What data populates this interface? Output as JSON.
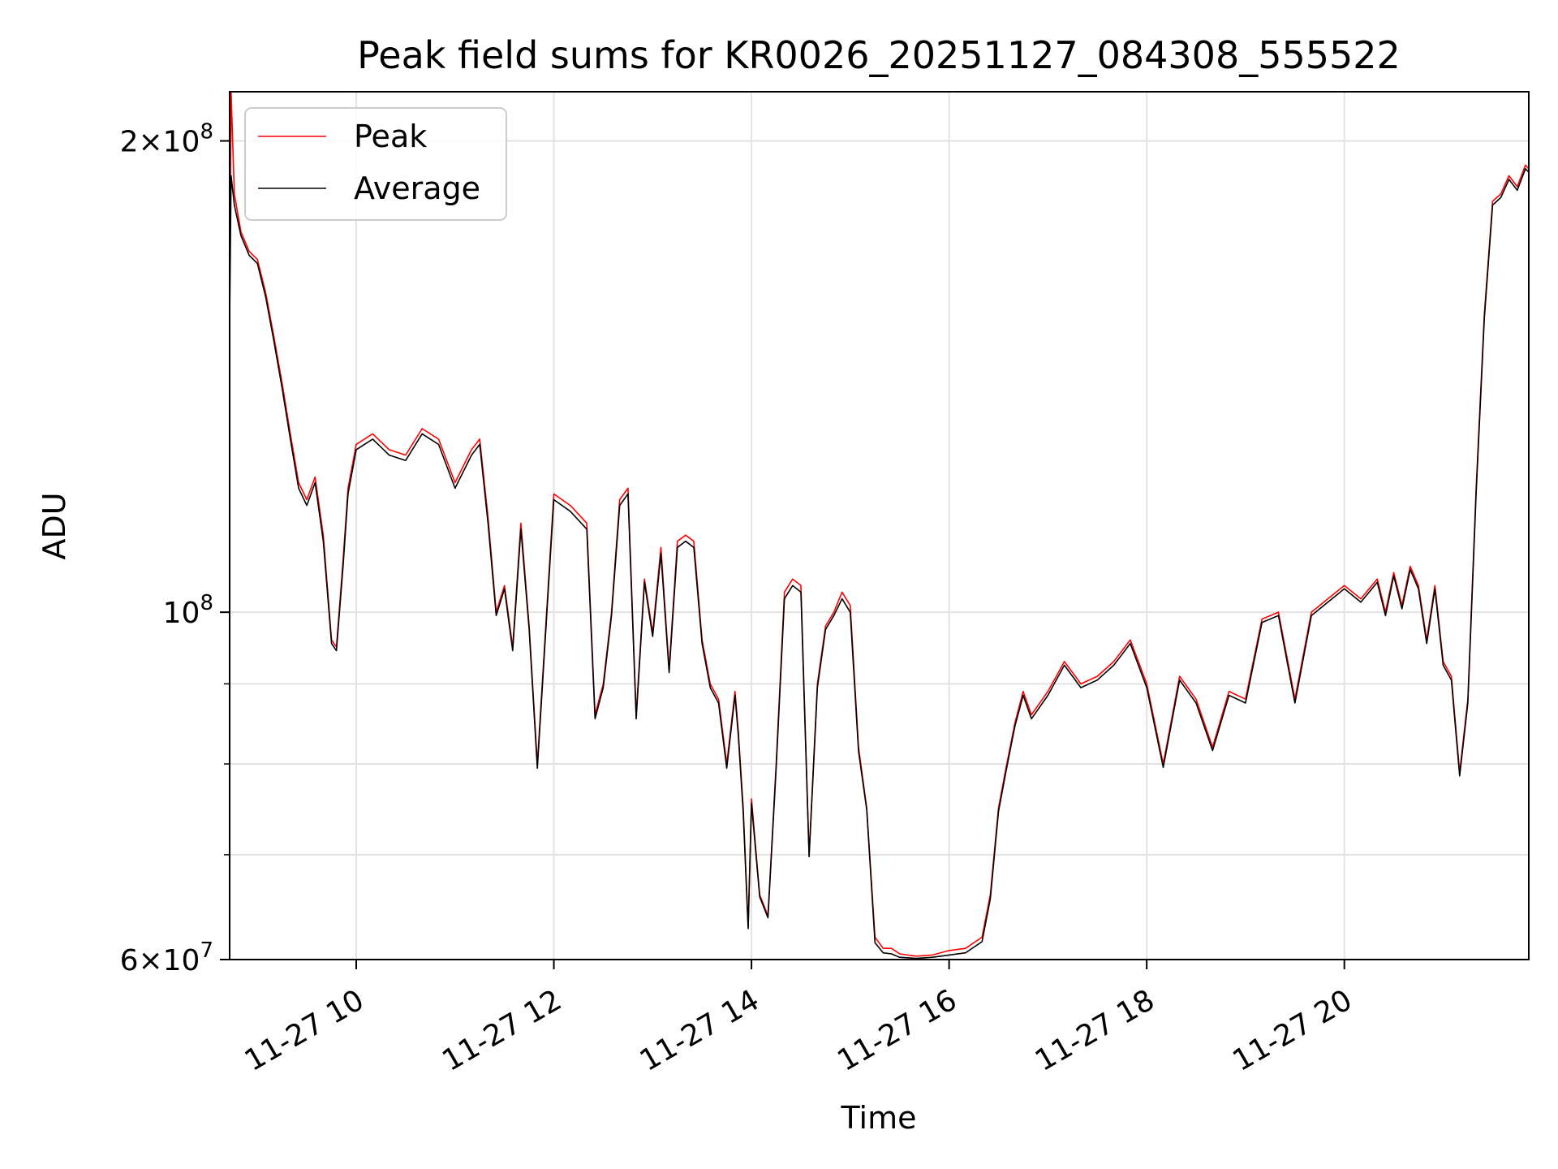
{
  "chart_data": {
    "type": "line",
    "title": "Peak field sums for KR0026_20251127_084308_555522",
    "xlabel": "Time",
    "ylabel": "ADU",
    "x_scale": "time",
    "y_scale": "log",
    "xlim": [
      "2025-11-27T08:43:08",
      "2025-11-27T21:52:00"
    ],
    "ylim": [
      60000000,
      215000000
    ],
    "grid": true,
    "legend_position": "top-left",
    "x_ticks": [
      {
        "value": "2025-11-27T10:00",
        "label": "11-27 10"
      },
      {
        "value": "2025-11-27T12:00",
        "label": "11-27 12"
      },
      {
        "value": "2025-11-27T14:00",
        "label": "11-27 14"
      },
      {
        "value": "2025-11-27T16:00",
        "label": "11-27 16"
      },
      {
        "value": "2025-11-27T18:00",
        "label": "11-27 18"
      },
      {
        "value": "2025-11-27T20:00",
        "label": "11-27 20"
      }
    ],
    "y_major_ticks": [
      {
        "value": 60000000,
        "mantissa": "6",
        "exponent": "7"
      },
      {
        "value": 100000000,
        "mantissa": "",
        "exponent": "8"
      },
      {
        "value": 200000000,
        "mantissa": "2",
        "exponent": "8"
      }
    ],
    "y_minor_ticks": [
      70000000,
      80000000,
      90000000
    ],
    "x": [
      "08:43",
      "08:44",
      "08:46",
      "08:50",
      "08:55",
      "09:00",
      "09:05",
      "09:10",
      "09:15",
      "09:20",
      "09:25",
      "09:30",
      "09:35",
      "09:40",
      "09:45",
      "09:48",
      "09:52",
      "09:55",
      "10:00",
      "10:10",
      "10:20",
      "10:30",
      "10:40",
      "10:50",
      "11:00",
      "11:10",
      "11:15",
      "11:20",
      "11:25",
      "11:30",
      "11:35",
      "11:40",
      "11:45",
      "11:50",
      "12:00",
      "12:10",
      "12:20",
      "12:25",
      "12:30",
      "12:35",
      "12:40",
      "12:45",
      "12:50",
      "12:55",
      "13:00",
      "13:05",
      "13:10",
      "13:15",
      "13:20",
      "13:25",
      "13:30",
      "13:35",
      "13:40",
      "13:45",
      "13:50",
      "13:52",
      "13:55",
      "13:58",
      "14:00",
      "14:05",
      "14:10",
      "14:15",
      "14:20",
      "14:25",
      "14:30",
      "14:35",
      "14:40",
      "14:45",
      "14:50",
      "14:55",
      "15:00",
      "15:05",
      "15:10",
      "15:15",
      "15:20",
      "15:25",
      "15:30",
      "15:40",
      "15:50",
      "16:00",
      "16:10",
      "16:20",
      "16:25",
      "16:30",
      "16:35",
      "16:40",
      "16:45",
      "16:50",
      "17:00",
      "17:10",
      "17:20",
      "17:30",
      "17:40",
      "17:50",
      "18:00",
      "18:10",
      "18:20",
      "18:30",
      "18:40",
      "18:50",
      "19:00",
      "19:10",
      "19:20",
      "19:30",
      "19:40",
      "19:50",
      "20:00",
      "20:10",
      "20:20",
      "20:25",
      "20:30",
      "20:35",
      "20:40",
      "20:45",
      "20:50",
      "20:55",
      "21:00",
      "21:05",
      "21:10",
      "21:15",
      "21:20",
      "21:25",
      "21:30",
      "21:35",
      "21:40",
      "21:45",
      "21:50",
      "21:52"
    ],
    "series": [
      {
        "name": "Peak",
        "color": "#ff0000",
        "values": [
          150000000,
          215000000,
          185000000,
          175000000,
          170000000,
          168000000,
          160000000,
          150000000,
          140000000,
          130000000,
          121000000,
          118000000,
          122000000,
          112000000,
          96000000,
          95000000,
          108000000,
          120000000,
          128000000,
          130000000,
          127000000,
          126000000,
          131000000,
          129000000,
          121000000,
          127000000,
          129000000,
          115000000,
          100000000,
          104000000,
          95000000,
          114000000,
          98000000,
          80000000,
          119000000,
          117000000,
          114000000,
          86000000,
          90000000,
          100000000,
          118000000,
          120000000,
          86000000,
          105000000,
          97000000,
          110000000,
          92000000,
          111000000,
          112000000,
          111000000,
          96000000,
          90000000,
          88000000,
          80000000,
          89000000,
          84000000,
          75000000,
          63000000,
          76000000,
          66000000,
          64000000,
          80000000,
          103000000,
          105000000,
          104000000,
          70000000,
          90000000,
          98000000,
          100000000,
          103000000,
          101000000,
          82000000,
          75000000,
          62000000,
          61000000,
          61000000,
          60500000,
          60300000,
          60400000,
          60800000,
          61000000,
          62000000,
          66000000,
          75000000,
          80000000,
          85000000,
          89000000,
          86000000,
          89000000,
          93000000,
          90000000,
          91000000,
          93000000,
          96000000,
          90000000,
          80000000,
          91000000,
          88000000,
          82000000,
          89000000,
          88000000,
          99000000,
          100000000,
          88000000,
          100000000,
          102000000,
          104000000,
          102000000,
          105000000,
          100000000,
          106000000,
          101000000,
          107000000,
          104000000,
          96000000,
          104000000,
          93000000,
          91000000,
          79000000,
          88000000,
          120000000,
          155000000,
          183000000,
          185000000,
          190000000,
          187000000,
          193000000,
          192000000
        ]
      },
      {
        "name": "Average",
        "color": "#000000",
        "values": [
          148000000,
          190000000,
          182000000,
          174000000,
          169000000,
          167000000,
          159000000,
          149000000,
          139000000,
          129000000,
          120000000,
          117000000,
          121000000,
          111000000,
          95500000,
          94500000,
          107000000,
          119000000,
          127000000,
          129000000,
          126000000,
          125000000,
          130000000,
          128000000,
          120000000,
          126000000,
          128000000,
          114000000,
          99500000,
          103500000,
          94500000,
          113000000,
          97500000,
          79500000,
          118000000,
          116000000,
          113000000,
          85500000,
          89500000,
          99500000,
          117000000,
          119000000,
          85500000,
          104500000,
          96500000,
          109000000,
          91500000,
          110000000,
          111000000,
          110000000,
          95500000,
          89500000,
          87500000,
          79500000,
          88500000,
          83500000,
          74500000,
          62800000,
          75500000,
          65800000,
          63800000,
          79500000,
          102000000,
          104000000,
          103000000,
          69800000,
          89500000,
          97500000,
          99500000,
          102000000,
          100000000,
          81500000,
          74800000,
          61500000,
          60600000,
          60500000,
          60200000,
          60100000,
          60200000,
          60400000,
          60600000,
          61600000,
          65600000,
          74600000,
          79600000,
          84600000,
          88500000,
          85500000,
          88500000,
          92500000,
          89500000,
          90500000,
          92500000,
          95500000,
          89500000,
          79600000,
          90500000,
          87500000,
          81600000,
          88500000,
          87500000,
          98500000,
          99500000,
          87500000,
          99500000,
          101500000,
          103500000,
          101500000,
          104500000,
          99500000,
          105500000,
          100500000,
          106500000,
          103500000,
          95500000,
          103500000,
          92500000,
          90500000,
          78600000,
          87500000,
          119000000,
          154000000,
          182000000,
          184000000,
          189000000,
          186000000,
          192000000,
          191000000
        ]
      }
    ]
  }
}
